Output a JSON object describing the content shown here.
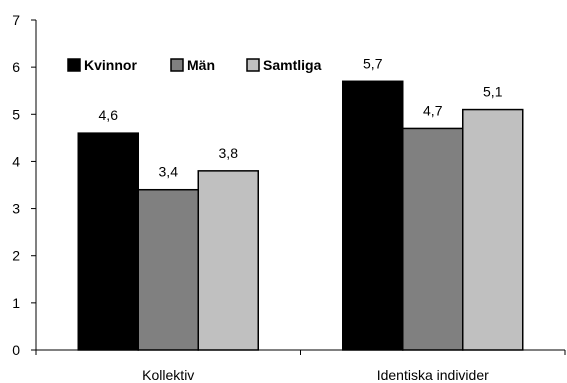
{
  "chart_data": {
    "type": "bar",
    "categories": [
      "Kollektiv",
      "Identiska individer"
    ],
    "series": [
      {
        "name": "Kvinnor",
        "values": [
          4.6,
          5.7
        ],
        "color": "#000000"
      },
      {
        "name": "Män",
        "values": [
          3.4,
          4.7
        ],
        "color": "#808080"
      },
      {
        "name": "Samtliga",
        "values": [
          3.8,
          5.1
        ],
        "color": "#c0c0c0"
      }
    ],
    "data_labels": [
      [
        "4,6",
        "5,7"
      ],
      [
        "3,4",
        "4,7"
      ],
      [
        "3,8",
        "5,1"
      ]
    ],
    "y_ticks": [
      0,
      1,
      2,
      3,
      4,
      5,
      6,
      7
    ],
    "y_tick_labels": [
      "0",
      "1",
      "2",
      "3",
      "4",
      "5",
      "6",
      "7"
    ],
    "ylim": [
      0,
      7
    ],
    "title": "",
    "xlabel": "",
    "ylabel": "",
    "grid": false,
    "legend_position": "top-left"
  }
}
